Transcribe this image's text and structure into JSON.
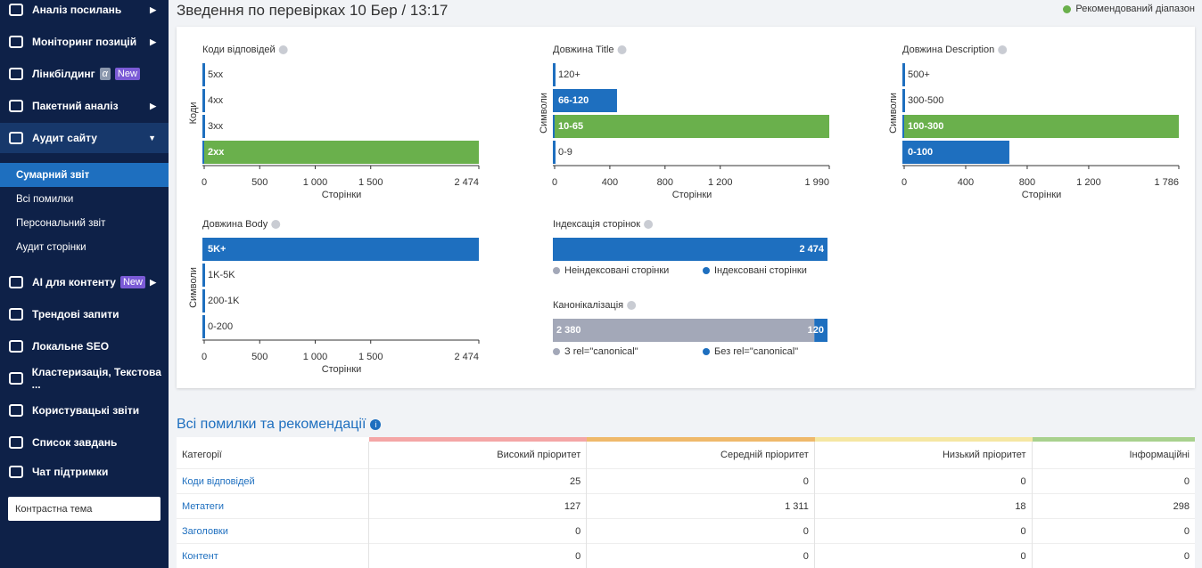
{
  "sidebar": {
    "items": [
      {
        "label": "Аналіз посилань"
      },
      {
        "label": "Моніторинг позицій"
      },
      {
        "label": "Лінкбілдинг",
        "badges": [
          "α",
          "New"
        ]
      },
      {
        "label": "Пакетний аналіз"
      },
      {
        "label": "Аудит сайту"
      }
    ],
    "subitems": [
      "Сумарний звіт",
      "Всі помилки",
      "Персональний звіт",
      "Аудит сторінки"
    ],
    "items2": [
      {
        "label": "AI для контенту",
        "badges": [
          "New"
        ]
      },
      {
        "label": "Трендові запити"
      },
      {
        "label": "Локальне SEO"
      },
      {
        "label": "Кластеризація, Текстова ..."
      },
      {
        "label": "Користувацькі звіти"
      },
      {
        "label": "Список завдань"
      },
      {
        "label": "Чат підтримки"
      }
    ],
    "theme": "Контрастна тема"
  },
  "header": {
    "title": "Зведення по перевірках 10 Бер / 13:17",
    "legend": "Рекомендований діапазон",
    "legend_color": "#6ab04c"
  },
  "charts": [
    {
      "type": "hbar",
      "title": "Коди відповідей",
      "ylabel": "Коди",
      "xlabel": "Сторінки",
      "categories": [
        "5xx",
        "4xx",
        "3xx",
        "2xx"
      ],
      "values": [
        0,
        0,
        0,
        2474
      ],
      "colors": [
        "#1e6fbf",
        "#1e6fbf",
        "#1e6fbf",
        "#6ab04c"
      ],
      "xlim": [
        0,
        2474
      ],
      "xticks": [
        0,
        500,
        {
          "value": 1000,
          "label": "1 000"
        },
        {
          "value": 1500,
          "label": "1 500"
        },
        {
          "value": 2474,
          "label": "2 474"
        }
      ]
    },
    {
      "type": "hbar",
      "title": "Довжина Title",
      "ylabel": "Символи",
      "xlabel": "Сторінки",
      "categories": [
        "120+",
        "66-120",
        "10-65",
        "0-9"
      ],
      "values": [
        0,
        452,
        1990,
        0
      ],
      "colors": [
        "#1e6fbf",
        "#1e6fbf",
        "#6ab04c",
        "#1e6fbf"
      ],
      "xlim": [
        0,
        1990
      ],
      "xticks": [
        0,
        400,
        800,
        {
          "value": 1200,
          "label": "1 200"
        },
        {
          "value": 1990,
          "label": "1 990"
        }
      ]
    },
    {
      "type": "hbar",
      "title": "Довжина Description",
      "ylabel": "Символи",
      "xlabel": "Сторінки",
      "categories": [
        "500+",
        "300-500",
        "100-300",
        "0-100"
      ],
      "values": [
        0,
        0,
        1786,
        684
      ],
      "colors": [
        "#1e6fbf",
        "#1e6fbf",
        "#6ab04c",
        "#1e6fbf"
      ],
      "xlim": [
        0,
        1786
      ],
      "xticks": [
        0,
        400,
        800,
        {
          "value": 1200,
          "label": "1 200"
        },
        {
          "value": 1786,
          "label": "1 786"
        }
      ]
    },
    {
      "type": "hbar",
      "title": "Довжина Body",
      "ylabel": "Символи",
      "xlabel": "Сторінки",
      "categories": [
        "5K+",
        "1K-5K",
        "200-1K",
        "0-200"
      ],
      "values": [
        2474,
        0,
        0,
        0
      ],
      "colors": [
        "#1e6fbf",
        "#1e6fbf",
        "#1e6fbf",
        "#1e6fbf"
      ],
      "xlim": [
        0,
        2474
      ],
      "xticks": [
        0,
        500,
        {
          "value": 1000,
          "label": "1 000"
        },
        {
          "value": 1500,
          "label": "1 500"
        },
        {
          "value": 2474,
          "label": "2 474"
        }
      ]
    },
    {
      "type": "stack",
      "title": "Індексація сторінок",
      "series": [
        {
          "name": "Неіндексовані сторінки",
          "color": "#a3a8b8",
          "values": [
            0
          ],
          "value_labels": [
            "0"
          ]
        },
        {
          "name": "Індексовані сторінки",
          "color": "#1e6fbf",
          "values": [
            2474
          ],
          "value_labels": [
            "2 474"
          ]
        }
      ]
    },
    {
      "type": "stack",
      "title": "Канонікалізація",
      "series": [
        {
          "name": "З rel=\"canonical\"",
          "color": "#a3a8b8",
          "values": [
            2380
          ],
          "value_labels": [
            "2 380"
          ]
        },
        {
          "name": "Без rel=\"canonical\"",
          "color": "#1e6fbf",
          "values": [
            120
          ],
          "value_labels": [
            "120"
          ]
        }
      ]
    }
  ],
  "errors": {
    "title": "Всі помилки та рекомендації",
    "columns": [
      "Категорії",
      "Високий пріоритет",
      "Середній пріоритет",
      "Низький пріоритет",
      "Інформаційні"
    ],
    "column_colors": [
      "#f4a6a6",
      "#efb96b",
      "#f5e7a3",
      "#a9d18e"
    ],
    "rows": [
      [
        "Коди відповідей",
        25,
        0,
        0,
        0
      ],
      [
        "Метатеги",
        127,
        "1 311",
        18,
        298
      ],
      [
        "Заголовки",
        0,
        0,
        0,
        0
      ],
      [
        "Контент",
        0,
        0,
        0,
        0
      ]
    ]
  }
}
